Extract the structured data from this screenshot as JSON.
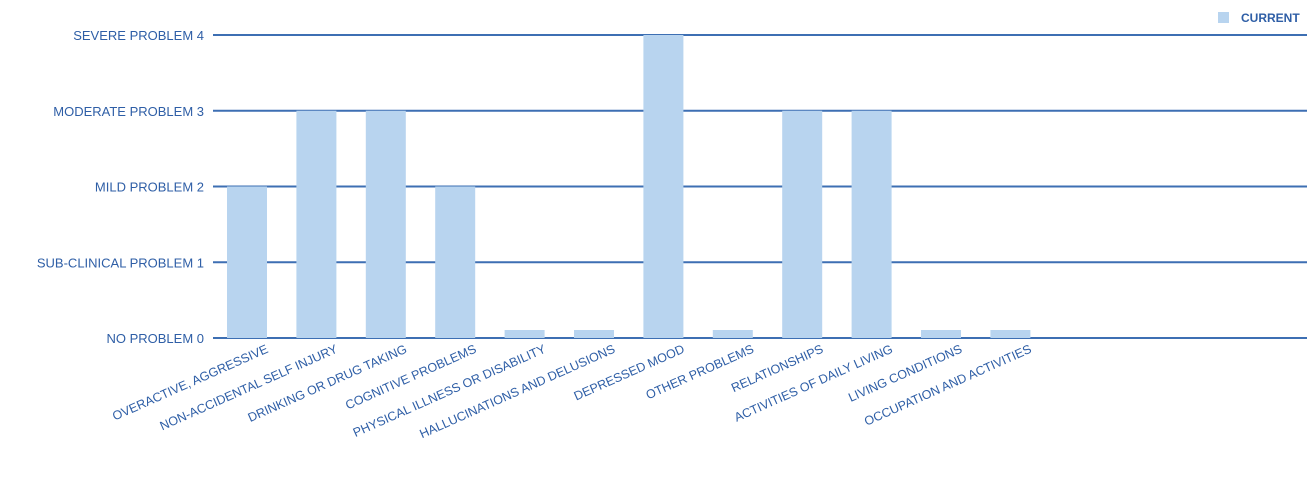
{
  "chart_data": {
    "type": "bar",
    "categories": [
      "OVERACTIVE, AGGRESSIVE",
      "NON-ACCIDENTAL SELF INJURY",
      "DRINKING OR DRUG TAKING",
      "COGNITIVE PROBLEMS",
      "PHYSICAL ILLNESS OR DISABILITY",
      "HALLUCINATIONS AND DELUSIONS",
      "DEPRESSED MOOD",
      "OTHER PROBLEMS",
      "RELATIONSHIPS",
      "ACTIVITIES OF DAILY LIVING",
      "LIVING CONDITIONS",
      "OCCUPATION AND ACTIVITIES"
    ],
    "series": [
      {
        "name": "CURRENT",
        "values": [
          2,
          3,
          3,
          2,
          0,
          0,
          4,
          0,
          3,
          3,
          0,
          0
        ]
      }
    ],
    "y_tick_labels": [
      "NO PROBLEM 0",
      "SUB-CLINICAL PROBLEM 1",
      "MILD PROBLEM 2",
      "MODERATE PROBLEM 3",
      "SEVERE PROBLEM 4"
    ],
    "ylim": [
      0,
      4
    ],
    "grid": true,
    "legend": "top-right",
    "colors": {
      "bar": "#b8d4ef",
      "grid": "#3d6fb3",
      "text": "#2e5ea6",
      "legend_marker": "#b8d4ef"
    }
  }
}
